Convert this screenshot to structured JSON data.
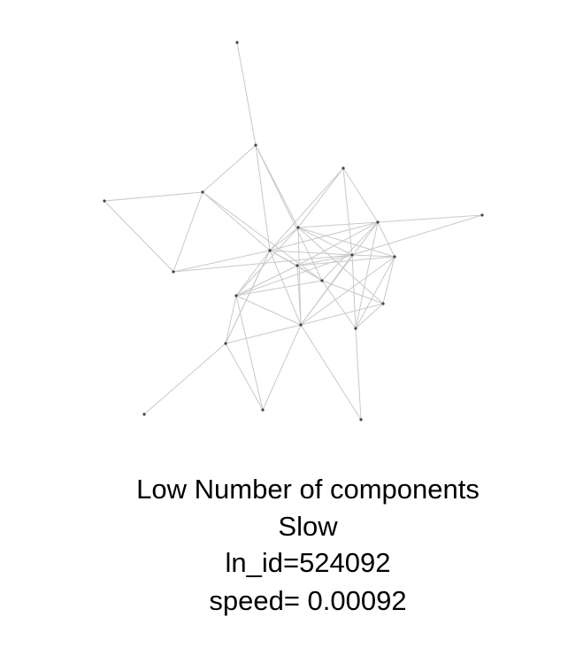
{
  "caption": {
    "line1": "Low Number of components",
    "line2": "Slow",
    "line3": "ln_id=524092",
    "line4": "speed= 0.00092"
  },
  "colors": {
    "edge": "#c9c9c9",
    "node": "#444444",
    "text": "#000000"
  }
}
